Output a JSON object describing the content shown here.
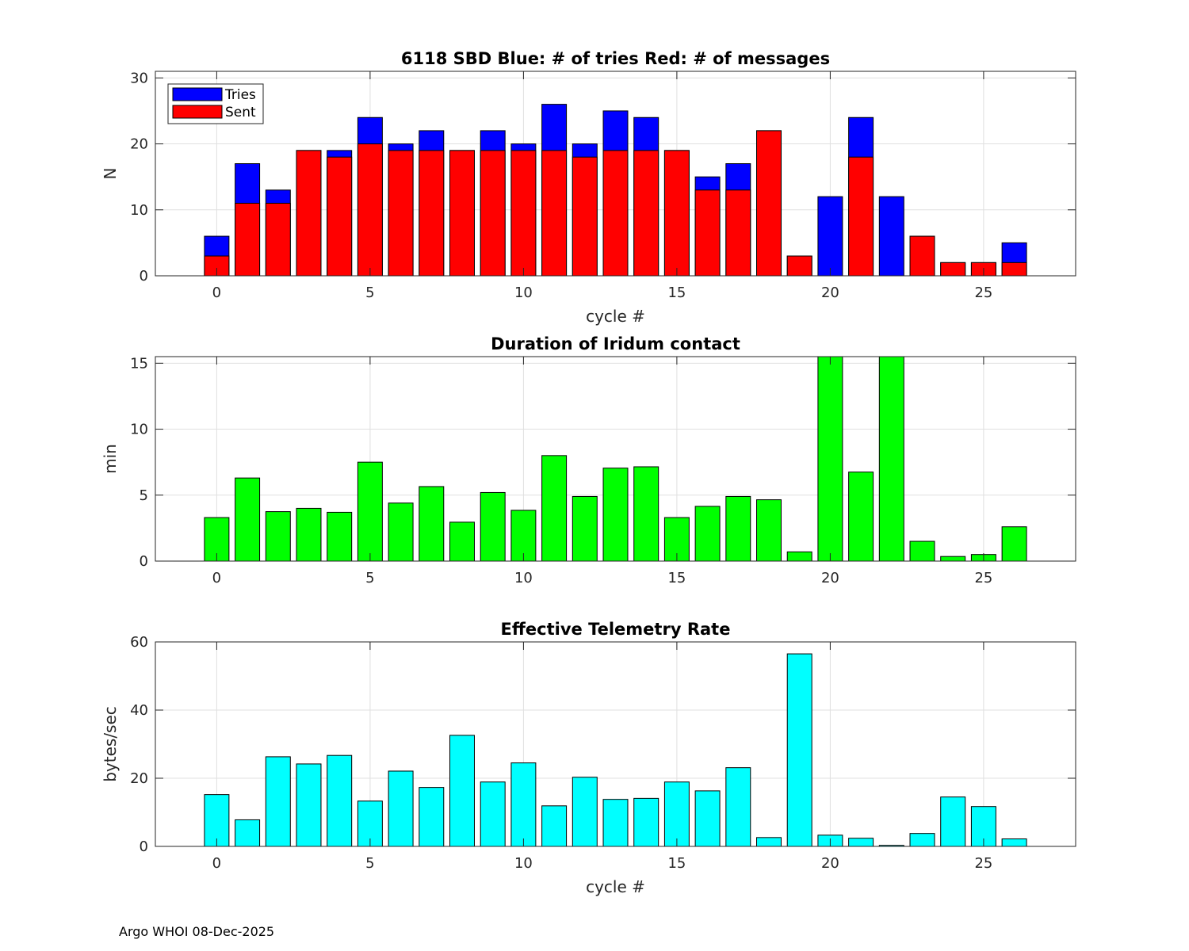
{
  "chart_data": [
    {
      "type": "bar",
      "stacked_overlay": true,
      "title": "6118 SBD  Blue: # of tries   Red: # of messages",
      "xlabel": "cycle #",
      "ylabel": "N",
      "xlim": [
        -2,
        28
      ],
      "ylim": [
        0,
        31
      ],
      "xticks": [
        0,
        5,
        10,
        15,
        20,
        25
      ],
      "yticks": [
        0,
        10,
        20,
        30
      ],
      "grid": true,
      "legend": {
        "placement": "top-left",
        "entries": [
          "Tries",
          "Sent"
        ]
      },
      "x": [
        0,
        1,
        2,
        3,
        4,
        5,
        6,
        7,
        8,
        9,
        10,
        11,
        12,
        13,
        14,
        15,
        16,
        17,
        18,
        19,
        20,
        21,
        22,
        23,
        24,
        25,
        26
      ],
      "series": [
        {
          "name": "Tries",
          "color": "#0000ff",
          "values": [
            6,
            17,
            13,
            19,
            19,
            24,
            20,
            22,
            19,
            22,
            20,
            26,
            20,
            25,
            24,
            19,
            15,
            17,
            22,
            3,
            12,
            24,
            12,
            6,
            2,
            2,
            5
          ]
        },
        {
          "name": "Sent",
          "color": "#ff0000",
          "values": [
            3,
            11,
            11,
            19,
            18,
            20,
            19,
            19,
            19,
            19,
            19,
            19,
            18,
            19,
            19,
            19,
            13,
            13,
            22,
            3,
            0,
            18,
            0,
            6,
            2,
            2,
            2
          ]
        }
      ]
    },
    {
      "type": "bar",
      "title": "Duration of Iridum contact",
      "xlabel": "",
      "ylabel": "min",
      "xlim": [
        -2,
        28
      ],
      "ylim": [
        0,
        15.5
      ],
      "xticks": [
        0,
        5,
        10,
        15,
        20,
        25
      ],
      "yticks": [
        0,
        5,
        10,
        15
      ],
      "grid": true,
      "x": [
        -1,
        0,
        1,
        2,
        3,
        4,
        5,
        6,
        7,
        8,
        9,
        10,
        11,
        12,
        13,
        14,
        15,
        16,
        17,
        18,
        19,
        20,
        21,
        22,
        23,
        24,
        25,
        26
      ],
      "series": [
        {
          "name": "duration",
          "color": "#00ff00",
          "values": [
            0,
            3.3,
            6.3,
            3.75,
            4.0,
            3.7,
            7.5,
            4.4,
            5.65,
            2.95,
            5.2,
            3.85,
            8.0,
            4.9,
            7.05,
            7.15,
            3.3,
            4.15,
            4.9,
            4.65,
            0.7,
            15.5,
            6.75,
            15.5,
            1.5,
            0.35,
            0.5,
            2.6
          ]
        }
      ]
    },
    {
      "type": "bar",
      "title": "Effective Telemetry Rate",
      "xlabel": "cycle #",
      "ylabel": "bytes/sec",
      "xlim": [
        -2,
        28
      ],
      "ylim": [
        0,
        60
      ],
      "xticks": [
        0,
        5,
        10,
        15,
        20,
        25
      ],
      "yticks": [
        0,
        20,
        40,
        60
      ],
      "grid": true,
      "x": [
        0,
        1,
        2,
        3,
        4,
        5,
        6,
        7,
        8,
        9,
        10,
        11,
        12,
        13,
        14,
        15,
        16,
        17,
        18,
        19,
        20,
        21,
        22,
        23,
        24,
        25,
        26
      ],
      "series": [
        {
          "name": "rate",
          "color": "#00ffff",
          "values": [
            15.2,
            7.8,
            26.3,
            24.2,
            26.7,
            13.3,
            22.1,
            17.3,
            32.6,
            18.9,
            24.5,
            11.9,
            20.3,
            13.8,
            14.1,
            18.9,
            16.3,
            23.1,
            2.6,
            56.5,
            3.3,
            2.4,
            0.3,
            3.8,
            14.5,
            11.7,
            2.2
          ]
        }
      ]
    }
  ],
  "footer": "Argo WHOI 08-Dec-2025"
}
